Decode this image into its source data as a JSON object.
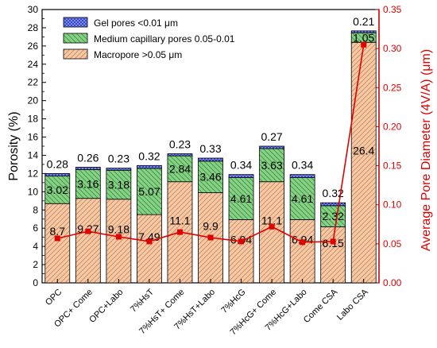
{
  "chart_data": {
    "type": "bar",
    "stacked": true,
    "categories": [
      "OPC",
      "OPC+ Come",
      "OPC+Labo",
      "7%HsT",
      "7%HsT+ Come",
      "7%HsT+Labo",
      "7%HcG",
      "7%HcG+ Come",
      "7%HcG+Labo",
      "Come CSA",
      "Labo CSA"
    ],
    "ylabel": "Porosity (%)",
    "ylim": [
      0,
      30
    ],
    "yticks": [
      0,
      2,
      4,
      6,
      8,
      10,
      12,
      14,
      16,
      18,
      20,
      22,
      24,
      26,
      28,
      30
    ],
    "y2label": "Average Pore Diameter (4V/A) (μm)",
    "y2lim": [
      0.0,
      0.35
    ],
    "y2ticks": [
      "0.00",
      "0.05",
      "0.10",
      "0.15",
      "0.20",
      "0.25",
      "0.30",
      "0.35"
    ],
    "legend_position": "top-left",
    "series": [
      {
        "name": "Macropore >0.05 μm",
        "color": "#f5c9a6",
        "hatch": "diagonal-back",
        "values": [
          8.7,
          9.27,
          9.18,
          7.49,
          11.1,
          9.9,
          6.94,
          11.1,
          6.94,
          6.15,
          26.4
        ]
      },
      {
        "name": "Medium capillary pores 0.05-0.01",
        "color": "#86d186",
        "hatch": "diagonal-forward",
        "values": [
          3.02,
          3.16,
          3.18,
          5.07,
          2.84,
          3.46,
          4.61,
          3.63,
          4.61,
          2.32,
          1.05
        ]
      },
      {
        "name": "Gel pores <0.01 μm",
        "color": "#2f3fbf",
        "hatch": "crosshatch",
        "values": [
          0.28,
          0.26,
          0.23,
          0.32,
          0.23,
          0.33,
          0.34,
          0.27,
          0.34,
          0.32,
          0.21
        ]
      }
    ],
    "line_series": {
      "axis": "right",
      "color": "#e00000",
      "values": [
        0.057,
        0.066,
        0.059,
        0.053,
        0.065,
        0.058,
        0.053,
        0.072,
        0.052,
        0.053,
        0.305
      ]
    },
    "labels": {
      "macro": [
        "8.7",
        "9.27",
        "9.18",
        "7.49",
        "11.1",
        "9.9",
        "6.94",
        "11.1",
        "6.94",
        "6.15",
        "26.4"
      ],
      "medium": [
        "3.02",
        "3.16",
        "3.18",
        "5.07",
        "2.84",
        "3.46",
        "4.61",
        "3.63",
        "4.61",
        "2.32",
        "1.05"
      ],
      "gel": [
        "0.28",
        "0.26",
        "0.23",
        "0.32",
        "0.23",
        "0.33",
        "0.34",
        "0.27",
        "0.34",
        "0.32",
        "0.21"
      ]
    }
  }
}
